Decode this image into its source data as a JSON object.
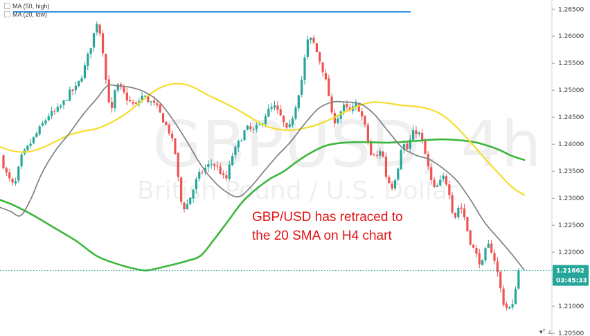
{
  "legend": {
    "ma_high": "MA (50, high)",
    "ma_low": "MA (20, low)"
  },
  "watermark": {
    "symbol": "GBPUSD, 4h",
    "description": "British Pound / U.S. Dollar"
  },
  "annotation": {
    "line1": "GBP/USD has retraced to",
    "line2": "the 20 SMA on H4 chart"
  },
  "colors": {
    "bull": "#26a69a",
    "bear": "#ef5350",
    "ma_50_high": "#f5dd2d",
    "ma_20_low": "#808080",
    "ma_long": "#3cb63c",
    "resistance": "#1e88e5",
    "annotation": "#e31111",
    "price_badge": "#26a69a",
    "axis_bg": "#ffffff"
  },
  "chart_data": {
    "type": "line",
    "title": "",
    "ylim": [
      1.2045,
      1.2667
    ],
    "yticks": [
      "1.26500",
      "1.26000",
      "1.25500",
      "1.25000",
      "1.24500",
      "1.24000",
      "1.23500",
      "1.23000",
      "1.22500",
      "1.22000",
      "1.21500",
      "1.21000",
      "1.20500"
    ],
    "current_price": "1.21662",
    "countdown": "03:45:33",
    "resistance_level": 1.2645,
    "series": [
      {
        "name": "MA (50, high)",
        "role": "ma_50_high",
        "points": [
          [
            0,
            1.2395
          ],
          [
            20,
            1.2387
          ],
          [
            40,
            1.2386
          ],
          [
            60,
            1.2393
          ],
          [
            80,
            1.2405
          ],
          [
            100,
            1.2417
          ],
          [
            120,
            1.2424
          ],
          [
            140,
            1.2429
          ],
          [
            160,
            1.244
          ],
          [
            180,
            1.2455
          ],
          [
            200,
            1.2475
          ],
          [
            220,
            1.2496
          ],
          [
            240,
            1.2509
          ],
          [
            262,
            1.2512
          ],
          [
            280,
            1.2505
          ],
          [
            300,
            1.2491
          ],
          [
            320,
            1.2479
          ],
          [
            340,
            1.2466
          ],
          [
            360,
            1.2451
          ],
          [
            380,
            1.2436
          ],
          [
            400,
            1.2428
          ],
          [
            420,
            1.2426
          ],
          [
            440,
            1.243
          ],
          [
            460,
            1.2437
          ],
          [
            480,
            1.2448
          ],
          [
            500,
            1.2461
          ],
          [
            520,
            1.2472
          ],
          [
            540,
            1.2478
          ],
          [
            560,
            1.2476
          ],
          [
            580,
            1.2472
          ],
          [
            600,
            1.247
          ],
          [
            620,
            1.2465
          ],
          [
            640,
            1.2453
          ],
          [
            660,
            1.2431
          ],
          [
            680,
            1.2403
          ],
          [
            700,
            1.2374
          ],
          [
            720,
            1.2346
          ],
          [
            740,
            1.232
          ],
          [
            757,
            1.2306
          ]
        ]
      },
      {
        "name": "MA (20, low)",
        "role": "ma_20_low",
        "points": [
          [
            0,
            1.2283
          ],
          [
            15,
            1.2276
          ],
          [
            30,
            1.2268
          ],
          [
            45,
            1.23
          ],
          [
            60,
            1.2345
          ],
          [
            80,
            1.2388
          ],
          [
            100,
            1.242
          ],
          [
            120,
            1.2455
          ],
          [
            140,
            1.2485
          ],
          [
            155,
            1.2508
          ],
          [
            170,
            1.2508
          ],
          [
            190,
            1.2505
          ],
          [
            210,
            1.2496
          ],
          [
            230,
            1.2478
          ],
          [
            250,
            1.2445
          ],
          [
            270,
            1.2405
          ],
          [
            290,
            1.2362
          ],
          [
            310,
            1.233
          ],
          [
            330,
            1.2309
          ],
          [
            345,
            1.2303
          ],
          [
            360,
            1.2318
          ],
          [
            380,
            1.2348
          ],
          [
            400,
            1.2378
          ],
          [
            420,
            1.2405
          ],
          [
            440,
            1.2438
          ],
          [
            460,
            1.2466
          ],
          [
            480,
            1.2478
          ],
          [
            500,
            1.2478
          ],
          [
            520,
            1.2475
          ],
          [
            540,
            1.2456
          ],
          [
            560,
            1.2425
          ],
          [
            580,
            1.2395
          ],
          [
            600,
            1.238
          ],
          [
            620,
            1.2372
          ],
          [
            640,
            1.2355
          ],
          [
            660,
            1.2332
          ],
          [
            680,
            1.2296
          ],
          [
            700,
            1.2255
          ],
          [
            720,
            1.2225
          ],
          [
            740,
            1.2195
          ],
          [
            757,
            1.2167
          ]
        ]
      },
      {
        "name": "",
        "role": "ma_long",
        "points": [
          [
            0,
            1.2297
          ],
          [
            20,
            1.2287
          ],
          [
            50,
            1.2267
          ],
          [
            80,
            1.2244
          ],
          [
            110,
            1.2221
          ],
          [
            140,
            1.2193
          ],
          [
            170,
            1.2178
          ],
          [
            200,
            1.2168
          ],
          [
            215,
            1.2167
          ],
          [
            240,
            1.2174
          ],
          [
            270,
            1.2184
          ],
          [
            290,
            1.2194
          ],
          [
            310,
            1.2225
          ],
          [
            330,
            1.2259
          ],
          [
            350,
            1.2293
          ],
          [
            370,
            1.2317
          ],
          [
            390,
            1.2336
          ],
          [
            410,
            1.235
          ],
          [
            430,
            1.2369
          ],
          [
            450,
            1.2385
          ],
          [
            470,
            1.2397
          ],
          [
            490,
            1.2402
          ],
          [
            520,
            1.2404
          ],
          [
            560,
            1.2403
          ],
          [
            600,
            1.2406
          ],
          [
            640,
            1.2409
          ],
          [
            680,
            1.2405
          ],
          [
            700,
            1.2399
          ],
          [
            720,
            1.239
          ],
          [
            740,
            1.2378
          ],
          [
            757,
            1.2371
          ]
        ]
      },
      {
        "name": "",
        "role": "price",
        "points": [
          [
            5,
            1.2378
          ],
          [
            15,
            1.234
          ],
          [
            25,
            1.232
          ],
          [
            35,
            1.2375
          ],
          [
            45,
            1.2395
          ],
          [
            55,
            1.2415
          ],
          [
            65,
            1.2435
          ],
          [
            75,
            1.2455
          ],
          [
            85,
            1.246
          ],
          [
            95,
            1.2475
          ],
          [
            105,
            1.2495
          ],
          [
            115,
            1.2505
          ],
          [
            125,
            1.2535
          ],
          [
            135,
            1.258
          ],
          [
            145,
            1.263
          ],
          [
            152,
            1.2585
          ],
          [
            158,
            1.251
          ],
          [
            165,
            1.2455
          ],
          [
            172,
            1.251
          ],
          [
            180,
            1.25
          ],
          [
            190,
            1.248
          ],
          [
            200,
            1.247
          ],
          [
            210,
            1.249
          ],
          [
            220,
            1.248
          ],
          [
            230,
            1.247
          ],
          [
            240,
            1.2445
          ],
          [
            250,
            1.242
          ],
          [
            258,
            1.238
          ],
          [
            265,
            1.2295
          ],
          [
            272,
            1.228
          ],
          [
            280,
            1.2305
          ],
          [
            290,
            1.234
          ],
          [
            300,
            1.2355
          ],
          [
            310,
            1.2365
          ],
          [
            320,
            1.2355
          ],
          [
            330,
            1.233
          ],
          [
            340,
            1.238
          ],
          [
            350,
            1.2405
          ],
          [
            360,
            1.243
          ],
          [
            370,
            1.2425
          ],
          [
            380,
            1.2435
          ],
          [
            390,
            1.246
          ],
          [
            400,
            1.247
          ],
          [
            410,
            1.245
          ],
          [
            420,
            1.242
          ],
          [
            430,
            1.2465
          ],
          [
            440,
            1.252
          ],
          [
            448,
            1.259
          ],
          [
            455,
            1.2595
          ],
          [
            462,
            1.257
          ],
          [
            470,
            1.254
          ],
          [
            478,
            1.25
          ],
          [
            485,
            1.244
          ],
          [
            492,
            1.245
          ],
          [
            500,
            1.247
          ],
          [
            510,
            1.246
          ],
          [
            520,
            1.2475
          ],
          [
            530,
            1.244
          ],
          [
            540,
            1.238
          ],
          [
            548,
            1.2375
          ],
          [
            555,
            1.2395
          ],
          [
            562,
            1.234
          ],
          [
            570,
            1.232
          ],
          [
            578,
            1.235
          ],
          [
            585,
            1.2405
          ],
          [
            592,
            1.239
          ],
          [
            600,
            1.242
          ],
          [
            608,
            1.2425
          ],
          [
            615,
            1.24
          ],
          [
            622,
            1.236
          ],
          [
            630,
            1.2315
          ],
          [
            638,
            1.2325
          ],
          [
            645,
            1.234
          ],
          [
            652,
            1.232
          ],
          [
            660,
            1.226
          ],
          [
            668,
            1.229
          ],
          [
            675,
            1.2265
          ],
          [
            682,
            1.2225
          ],
          [
            690,
            1.22
          ],
          [
            700,
            1.2175
          ],
          [
            708,
            1.2215
          ],
          [
            716,
            1.22
          ],
          [
            724,
            1.2155
          ],
          [
            730,
            1.211
          ],
          [
            737,
            1.2095
          ],
          [
            745,
            1.21
          ],
          [
            752,
            1.2166
          ]
        ]
      }
    ]
  }
}
